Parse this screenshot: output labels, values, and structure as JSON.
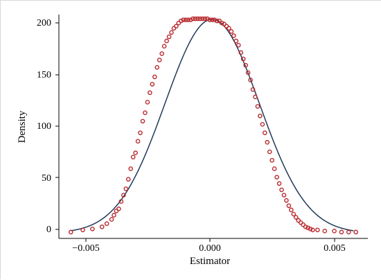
{
  "chart_data": {
    "type": "scatter",
    "title": "",
    "xlabel": "Estimator",
    "ylabel": "Density",
    "xlim": [
      -0.0063,
      0.0066
    ],
    "ylim": [
      -5,
      207
    ],
    "x_ticks": [
      -0.005,
      0.0,
      0.005
    ],
    "x_tick_labels": [
      "−0.005",
      "0.000",
      "0.005"
    ],
    "y_ticks": [
      0,
      50,
      100,
      150,
      200
    ],
    "y_tick_labels": [
      "0",
      "50",
      "100",
      "150",
      "200"
    ],
    "grid": false,
    "legend": "none",
    "series": [
      {
        "kind": "line",
        "color": "#1f3a5a",
        "description": "fitted normal density",
        "mean": 0.0001,
        "sd": 0.00197,
        "x_range": [
          -0.0058,
          0.006
        ]
      },
      {
        "kind": "points",
        "color": "#b8282d",
        "description": "kernel density of estimates",
        "x": [
          -0.0058,
          -0.0053,
          -0.0049,
          -0.0045,
          -0.0043,
          -0.0041,
          -0.004,
          -0.0039,
          -0.0038,
          -0.0037,
          -0.0036,
          -0.0035,
          -0.0034,
          -0.0033,
          -0.0032,
          -0.0031,
          -0.003,
          -0.0029,
          -0.0028,
          -0.0027,
          -0.0026,
          -0.0025,
          -0.0024,
          -0.0023,
          -0.0022,
          -0.0021,
          -0.002,
          -0.0019,
          -0.0018,
          -0.0017,
          -0.0016,
          -0.0015,
          -0.0014,
          -0.0013,
          -0.0012,
          -0.0011,
          -0.001,
          -0.0009,
          -0.0008,
          -0.0007,
          -0.0006,
          -0.0005,
          -0.0004,
          -0.0003,
          -0.0002,
          -0.0001,
          0.0,
          0.0001,
          0.0002,
          0.0003,
          0.0004,
          0.0005,
          0.0006,
          0.0007,
          0.0008,
          0.0009,
          0.001,
          0.0011,
          0.0012,
          0.0013,
          0.0014,
          0.0015,
          0.0016,
          0.0017,
          0.0018,
          0.0019,
          0.002,
          0.0021,
          0.0022,
          0.0023,
          0.0024,
          0.0025,
          0.0026,
          0.0027,
          0.0028,
          0.0029,
          0.003,
          0.0031,
          0.0032,
          0.0033,
          0.0034,
          0.0035,
          0.0036,
          0.0037,
          0.0038,
          0.0039,
          0.004,
          0.0041,
          0.0042,
          0.0043,
          0.0045,
          0.0048,
          0.0052,
          0.0055,
          0.0058,
          0.0061
        ],
        "y": [
          1,
          3,
          4,
          6,
          9,
          13,
          17,
          21,
          23,
          30,
          36,
          42,
          51,
          61,
          72,
          76,
          87,
          95,
          106,
          114,
          124,
          133,
          141,
          148,
          157,
          164,
          170,
          177,
          182,
          186,
          190,
          194,
          196,
          199,
          201,
          202,
          202,
          202,
          202,
          203,
          203,
          203,
          203,
          203,
          203,
          203,
          202,
          202,
          202,
          201,
          201,
          199,
          198,
          196,
          194,
          191,
          187,
          182,
          178,
          171,
          165,
          159,
          152,
          145,
          136,
          129,
          120,
          111,
          103,
          95,
          86,
          77,
          69,
          61,
          53,
          47,
          41,
          36,
          31,
          26,
          22,
          18,
          15,
          12,
          10,
          8,
          6,
          5,
          4,
          3,
          3,
          2,
          2,
          1,
          1,
          1
        ]
      }
    ]
  }
}
